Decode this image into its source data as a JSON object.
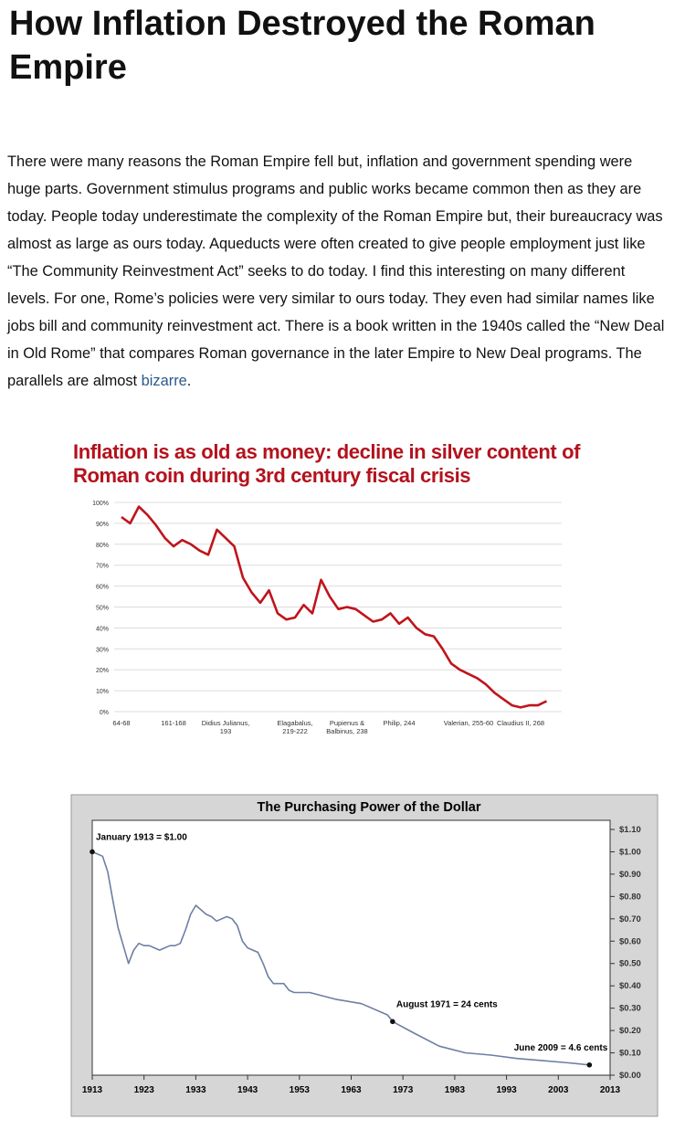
{
  "header": {
    "title": "How Inflation Destroyed the Roman Empire"
  },
  "paragraph": {
    "text": "There were many reasons the Roman Empire fell but, inflation and government spending were huge parts.  Government stimulus programs and public works became common then as they are today.  People today underestimate the complexity of the Roman Empire but, their bureaucracy was almost as large as ours today.  Aqueducts were often created to give people employment just like “The Community Reinvestment Act” seeks to do today.  I find this interesting on many different levels.  For one, Rome’s policies were very similar to ours today.  They even had similar names like jobs bill and community reinvestment act.    There is a book written in the 1940s called the “New Deal in Old Rome” that compares Roman governance in the later Empire to New Deal programs.  The parallels are almost ",
    "link": "bizarre",
    "end": "."
  },
  "chart_data": [
    {
      "type": "line",
      "title": "Inflation is as old as money: decline in silver content of Roman coin during 3rd century fiscal crisis",
      "categories": [
        "64-68",
        null,
        null,
        null,
        null,
        null,
        "161-168",
        null,
        null,
        null,
        null,
        null,
        "Didius Julianus, 193",
        null,
        null,
        null,
        null,
        null,
        null,
        null,
        "Elagabalus, 219-222",
        null,
        null,
        null,
        null,
        null,
        "Pupienus & Balbinus, 238",
        null,
        null,
        null,
        null,
        null,
        "Philip, 244",
        null,
        null,
        null,
        null,
        null,
        null,
        null,
        "Valerian, 255-60",
        null,
        null,
        null,
        null,
        null,
        "Claudius II, 268",
        null,
        null,
        null
      ],
      "series": [
        {
          "color": "#c0141c",
          "values": [
            93,
            90,
            98,
            94,
            89,
            83,
            79,
            82,
            80,
            77,
            75,
            87,
            83,
            79,
            64,
            57,
            52,
            58,
            47,
            44,
            45,
            51,
            47,
            63,
            55,
            49,
            50,
            49,
            46,
            43,
            44,
            47,
            42,
            45,
            40,
            37,
            36,
            30,
            23,
            20,
            18,
            16,
            13,
            9,
            6,
            3,
            2,
            3,
            3,
            5
          ]
        }
      ],
      "ylim": [
        0,
        100
      ],
      "yticks": [
        {
          "value": 0,
          "label": "0%"
        },
        {
          "value": 10,
          "label": "10%"
        },
        {
          "value": 20,
          "label": "20%"
        },
        {
          "value": 30,
          "label": "30%"
        },
        {
          "value": 40,
          "label": "40%"
        },
        {
          "value": 50,
          "label": "50%"
        },
        {
          "value": 60,
          "label": "60%"
        },
        {
          "value": 70,
          "label": "70%"
        },
        {
          "value": 80,
          "label": "80%"
        },
        {
          "value": 90,
          "label": "90%"
        },
        {
          "value": 100,
          "label": "100%"
        }
      ],
      "grid": true
    },
    {
      "type": "line",
      "title": "The Purchasing Power of the Dollar",
      "x": [
        1913,
        1914,
        1915,
        1916,
        1917,
        1918,
        1919,
        1920,
        1921,
        1922,
        1923,
        1924,
        1925,
        1926,
        1927,
        1928,
        1929,
        1930,
        1931,
        1932,
        1933,
        1934,
        1935,
        1936,
        1937,
        1938,
        1939,
        1940,
        1941,
        1942,
        1943,
        1944,
        1945,
        1946,
        1947,
        1948,
        1949,
        1950,
        1951,
        1952,
        1955,
        1960,
        1965,
        1970,
        1971,
        1975,
        1980,
        1985,
        1990,
        1995,
        2000,
        2005,
        2009
      ],
      "series": [
        {
          "color": "#6d7fa3",
          "values": [
            1.0,
            0.99,
            0.98,
            0.91,
            0.78,
            0.66,
            0.58,
            0.5,
            0.56,
            0.59,
            0.58,
            0.58,
            0.57,
            0.56,
            0.57,
            0.58,
            0.58,
            0.59,
            0.65,
            0.72,
            0.76,
            0.74,
            0.72,
            0.71,
            0.69,
            0.7,
            0.71,
            0.7,
            0.67,
            0.6,
            0.57,
            0.56,
            0.55,
            0.5,
            0.44,
            0.41,
            0.41,
            0.41,
            0.38,
            0.37,
            0.37,
            0.34,
            0.32,
            0.27,
            0.24,
            0.19,
            0.13,
            0.1,
            0.09,
            0.075,
            0.065,
            0.055,
            0.046
          ]
        }
      ],
      "xlim": [
        1913,
        2013
      ],
      "xticks": [
        1913,
        1923,
        1933,
        1943,
        1953,
        1963,
        1973,
        1983,
        1993,
        2003,
        2013
      ],
      "ylim": [
        0,
        1.1
      ],
      "y_axis_position": "right",
      "yticks": [
        {
          "value": 0,
          "label": "$0.00"
        },
        {
          "value": 0.1,
          "label": "$0.10"
        },
        {
          "value": 0.2,
          "label": "$0.20"
        },
        {
          "value": 0.3,
          "label": "$0.30"
        },
        {
          "value": 0.4,
          "label": "$0.40"
        },
        {
          "value": 0.5,
          "label": "$0.50"
        },
        {
          "value": 0.6,
          "label": "$0.60"
        },
        {
          "value": 0.7,
          "label": "$0.70"
        },
        {
          "value": 0.8,
          "label": "$0.80"
        },
        {
          "value": 0.9,
          "label": "$0.90"
        },
        {
          "value": 1.0,
          "label": "$1.00"
        },
        {
          "value": 1.1,
          "label": "$1.10"
        }
      ],
      "annotations": [
        {
          "text": "January 1913 = $1.00",
          "x": 1913,
          "y": 1.0
        },
        {
          "text": "August 1971 = 24 cents",
          "x": 1971,
          "y": 0.24
        },
        {
          "text": "June 2009 = 4.6 cents",
          "x": 2009,
          "y": 0.046
        }
      ]
    }
  ]
}
